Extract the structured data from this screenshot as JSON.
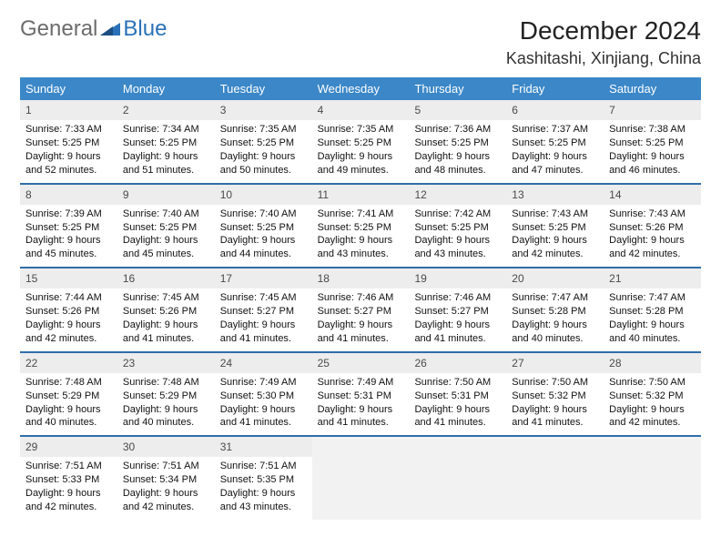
{
  "logo": {
    "part1": "General",
    "part2": "Blue"
  },
  "title": "December 2024",
  "location": "Kashitashi, Xinjiang, China",
  "colors": {
    "header_bg": "#3b87c8",
    "row_border": "#2f6ea8",
    "daynum_bg": "#ededed",
    "empty_bg": "#f2f2f2",
    "logo_gray": "#6c6c6c",
    "logo_blue": "#2a71b8"
  },
  "daynames": [
    "Sunday",
    "Monday",
    "Tuesday",
    "Wednesday",
    "Thursday",
    "Friday",
    "Saturday"
  ],
  "weeks": [
    [
      {
        "n": "1",
        "sr": "Sunrise: 7:33 AM",
        "ss": "Sunset: 5:25 PM",
        "d1": "Daylight: 9 hours",
        "d2": "and 52 minutes."
      },
      {
        "n": "2",
        "sr": "Sunrise: 7:34 AM",
        "ss": "Sunset: 5:25 PM",
        "d1": "Daylight: 9 hours",
        "d2": "and 51 minutes."
      },
      {
        "n": "3",
        "sr": "Sunrise: 7:35 AM",
        "ss": "Sunset: 5:25 PM",
        "d1": "Daylight: 9 hours",
        "d2": "and 50 minutes."
      },
      {
        "n": "4",
        "sr": "Sunrise: 7:35 AM",
        "ss": "Sunset: 5:25 PM",
        "d1": "Daylight: 9 hours",
        "d2": "and 49 minutes."
      },
      {
        "n": "5",
        "sr": "Sunrise: 7:36 AM",
        "ss": "Sunset: 5:25 PM",
        "d1": "Daylight: 9 hours",
        "d2": "and 48 minutes."
      },
      {
        "n": "6",
        "sr": "Sunrise: 7:37 AM",
        "ss": "Sunset: 5:25 PM",
        "d1": "Daylight: 9 hours",
        "d2": "and 47 minutes."
      },
      {
        "n": "7",
        "sr": "Sunrise: 7:38 AM",
        "ss": "Sunset: 5:25 PM",
        "d1": "Daylight: 9 hours",
        "d2": "and 46 minutes."
      }
    ],
    [
      {
        "n": "8",
        "sr": "Sunrise: 7:39 AM",
        "ss": "Sunset: 5:25 PM",
        "d1": "Daylight: 9 hours",
        "d2": "and 45 minutes."
      },
      {
        "n": "9",
        "sr": "Sunrise: 7:40 AM",
        "ss": "Sunset: 5:25 PM",
        "d1": "Daylight: 9 hours",
        "d2": "and 45 minutes."
      },
      {
        "n": "10",
        "sr": "Sunrise: 7:40 AM",
        "ss": "Sunset: 5:25 PM",
        "d1": "Daylight: 9 hours",
        "d2": "and 44 minutes."
      },
      {
        "n": "11",
        "sr": "Sunrise: 7:41 AM",
        "ss": "Sunset: 5:25 PM",
        "d1": "Daylight: 9 hours",
        "d2": "and 43 minutes."
      },
      {
        "n": "12",
        "sr": "Sunrise: 7:42 AM",
        "ss": "Sunset: 5:25 PM",
        "d1": "Daylight: 9 hours",
        "d2": "and 43 minutes."
      },
      {
        "n": "13",
        "sr": "Sunrise: 7:43 AM",
        "ss": "Sunset: 5:25 PM",
        "d1": "Daylight: 9 hours",
        "d2": "and 42 minutes."
      },
      {
        "n": "14",
        "sr": "Sunrise: 7:43 AM",
        "ss": "Sunset: 5:26 PM",
        "d1": "Daylight: 9 hours",
        "d2": "and 42 minutes."
      }
    ],
    [
      {
        "n": "15",
        "sr": "Sunrise: 7:44 AM",
        "ss": "Sunset: 5:26 PM",
        "d1": "Daylight: 9 hours",
        "d2": "and 42 minutes."
      },
      {
        "n": "16",
        "sr": "Sunrise: 7:45 AM",
        "ss": "Sunset: 5:26 PM",
        "d1": "Daylight: 9 hours",
        "d2": "and 41 minutes."
      },
      {
        "n": "17",
        "sr": "Sunrise: 7:45 AM",
        "ss": "Sunset: 5:27 PM",
        "d1": "Daylight: 9 hours",
        "d2": "and 41 minutes."
      },
      {
        "n": "18",
        "sr": "Sunrise: 7:46 AM",
        "ss": "Sunset: 5:27 PM",
        "d1": "Daylight: 9 hours",
        "d2": "and 41 minutes."
      },
      {
        "n": "19",
        "sr": "Sunrise: 7:46 AM",
        "ss": "Sunset: 5:27 PM",
        "d1": "Daylight: 9 hours",
        "d2": "and 41 minutes."
      },
      {
        "n": "20",
        "sr": "Sunrise: 7:47 AM",
        "ss": "Sunset: 5:28 PM",
        "d1": "Daylight: 9 hours",
        "d2": "and 40 minutes."
      },
      {
        "n": "21",
        "sr": "Sunrise: 7:47 AM",
        "ss": "Sunset: 5:28 PM",
        "d1": "Daylight: 9 hours",
        "d2": "and 40 minutes."
      }
    ],
    [
      {
        "n": "22",
        "sr": "Sunrise: 7:48 AM",
        "ss": "Sunset: 5:29 PM",
        "d1": "Daylight: 9 hours",
        "d2": "and 40 minutes."
      },
      {
        "n": "23",
        "sr": "Sunrise: 7:48 AM",
        "ss": "Sunset: 5:29 PM",
        "d1": "Daylight: 9 hours",
        "d2": "and 40 minutes."
      },
      {
        "n": "24",
        "sr": "Sunrise: 7:49 AM",
        "ss": "Sunset: 5:30 PM",
        "d1": "Daylight: 9 hours",
        "d2": "and 41 minutes."
      },
      {
        "n": "25",
        "sr": "Sunrise: 7:49 AM",
        "ss": "Sunset: 5:31 PM",
        "d1": "Daylight: 9 hours",
        "d2": "and 41 minutes."
      },
      {
        "n": "26",
        "sr": "Sunrise: 7:50 AM",
        "ss": "Sunset: 5:31 PM",
        "d1": "Daylight: 9 hours",
        "d2": "and 41 minutes."
      },
      {
        "n": "27",
        "sr": "Sunrise: 7:50 AM",
        "ss": "Sunset: 5:32 PM",
        "d1": "Daylight: 9 hours",
        "d2": "and 41 minutes."
      },
      {
        "n": "28",
        "sr": "Sunrise: 7:50 AM",
        "ss": "Sunset: 5:32 PM",
        "d1": "Daylight: 9 hours",
        "d2": "and 42 minutes."
      }
    ],
    [
      {
        "n": "29",
        "sr": "Sunrise: 7:51 AM",
        "ss": "Sunset: 5:33 PM",
        "d1": "Daylight: 9 hours",
        "d2": "and 42 minutes."
      },
      {
        "n": "30",
        "sr": "Sunrise: 7:51 AM",
        "ss": "Sunset: 5:34 PM",
        "d1": "Daylight: 9 hours",
        "d2": "and 42 minutes."
      },
      {
        "n": "31",
        "sr": "Sunrise: 7:51 AM",
        "ss": "Sunset: 5:35 PM",
        "d1": "Daylight: 9 hours",
        "d2": "and 43 minutes."
      },
      null,
      null,
      null,
      null
    ]
  ]
}
